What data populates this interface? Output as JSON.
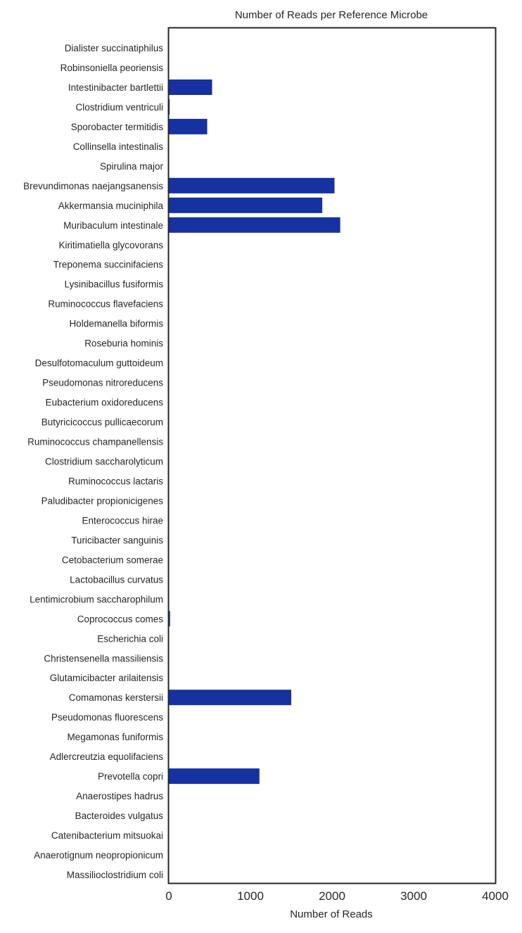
{
  "chart_data": {
    "type": "bar",
    "orientation": "horizontal",
    "title": "Number of Reads per Reference Microbe",
    "xlabel": "Number of Reads",
    "ylabel": "",
    "xlim": [
      0,
      4000
    ],
    "xticks": [
      0,
      1000,
      2000,
      3000,
      4000
    ],
    "grid": false,
    "legend": "none",
    "bar_color": "#1631a0",
    "categories": [
      "Dialister succinatiphilus",
      "Robinsoniella peoriensis",
      "Intestinibacter bartlettii",
      "Clostridium ventriculi",
      "Sporobacter termitidis",
      "Collinsella intestinalis",
      "Spirulina major",
      "Brevundimonas naejangsanensis",
      "Akkermansia muciniphila",
      "Muribaculum intestinale",
      "Kiritimatiella glycovorans",
      "Treponema succinifaciens",
      "Lysinibacillus fusiformis",
      "Ruminococcus flavefaciens",
      "Holdemanella biformis",
      "Roseburia hominis",
      "Desulfotomaculum guttoideum",
      "Pseudomonas nitroreducens",
      "Eubacterium oxidoreducens",
      "Butyricicoccus pullicaecorum",
      "Ruminococcus champanellensis",
      "Clostridium saccharolyticum",
      "Ruminococcus lactaris",
      "Paludibacter propionicigenes",
      "Enterococcus hirae",
      "Turicibacter sanguinis",
      "Cetobacterium somerae",
      "Lactobacillus curvatus",
      "Lentimicrobium saccharophilum",
      "Coprococcus comes",
      "Escherichia coli",
      "Christensenella massiliensis",
      "Glutamicibacter arilaitensis",
      "Comamonas kerstersii",
      "Pseudomonas fluorescens",
      "Megamonas funiformis",
      "Adlercreutzia equolifaciens",
      "Prevotella copri",
      "Anaerostipes hadrus",
      "Bacteroides vulgatus",
      "Catenibacterium mitsuokai",
      "Anaerotignum neopropionicum",
      "Massilioclostridium coli"
    ],
    "values": [
      0,
      0,
      530,
      10,
      470,
      0,
      0,
      2030,
      1880,
      2100,
      0,
      0,
      0,
      0,
      0,
      0,
      0,
      0,
      0,
      0,
      0,
      0,
      0,
      0,
      0,
      0,
      0,
      0,
      0,
      15,
      0,
      0,
      0,
      1500,
      0,
      0,
      0,
      1110,
      0,
      0,
      0,
      0,
      0
    ]
  }
}
